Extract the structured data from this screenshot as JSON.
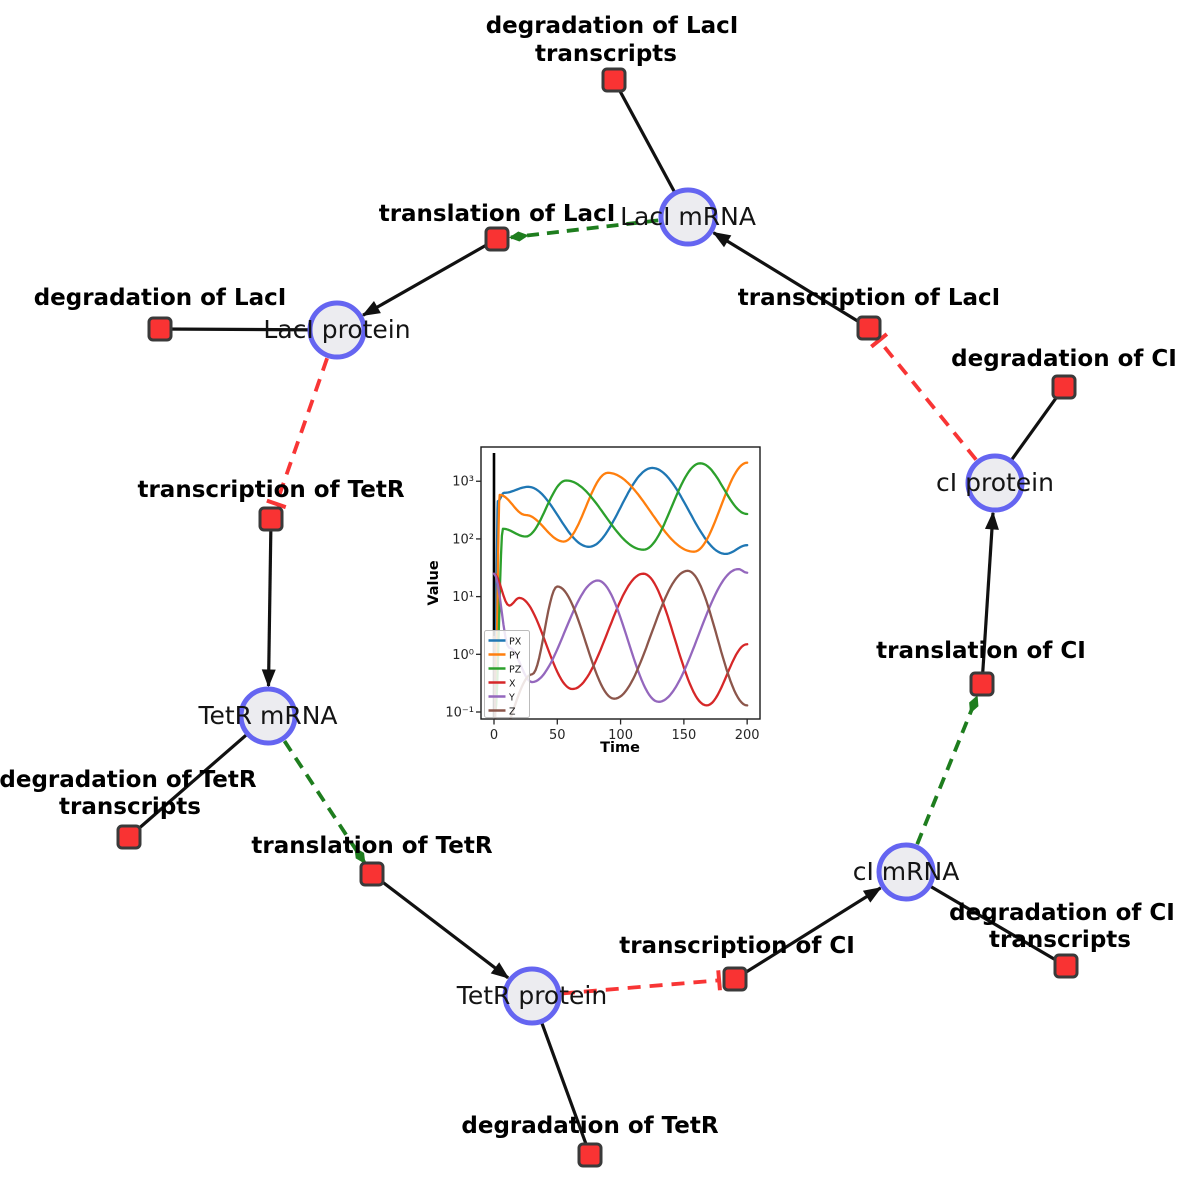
{
  "network": {
    "species": [
      {
        "id": "laci_mrna",
        "label": "LacI mRNA"
      },
      {
        "id": "laci_protein",
        "label": "LacI protein"
      },
      {
        "id": "tetr_mrna",
        "label": "TetR mRNA"
      },
      {
        "id": "tetr_protein",
        "label": "TetR protein"
      },
      {
        "id": "ci_mrna",
        "label": "cI mRNA"
      },
      {
        "id": "ci_protein",
        "label": "cI protein"
      }
    ],
    "reactions": [
      {
        "id": "deg_laci_tx",
        "label": "degradation of LacI",
        "label2": "transcripts"
      },
      {
        "id": "translation_laci",
        "label": "translation of LacI"
      },
      {
        "id": "deg_laci",
        "label": "degradation of LacI"
      },
      {
        "id": "transcription_laci",
        "label": "transcription of LacI"
      },
      {
        "id": "deg_ci",
        "label": "degradation of CI"
      },
      {
        "id": "transcription_tetr",
        "label": "transcription of TetR"
      },
      {
        "id": "deg_tetr_tx",
        "label": "degradation of TetR",
        "label2": "transcripts"
      },
      {
        "id": "translation_tetr",
        "label": "translation of TetR"
      },
      {
        "id": "deg_tetr",
        "label": "degradation of TetR"
      },
      {
        "id": "transcription_ci",
        "label": "transcription of CI"
      },
      {
        "id": "deg_ci_tx",
        "label": "degradation of CI",
        "label2": "transcripts"
      },
      {
        "id": "translation_ci",
        "label": "translation of CI"
      }
    ],
    "edges": [
      {
        "from": "laci_mrna",
        "to": "deg_laci_tx",
        "type": "consumption"
      },
      {
        "from": "tetr_mrna",
        "to": "deg_tetr_tx",
        "type": "consumption"
      },
      {
        "from": "ci_mrna",
        "to": "deg_ci_tx",
        "type": "consumption"
      },
      {
        "from": "laci_protein",
        "to": "deg_laci",
        "type": "consumption"
      },
      {
        "from": "tetr_protein",
        "to": "deg_tetr",
        "type": "consumption"
      },
      {
        "from": "ci_protein",
        "to": "deg_ci",
        "type": "consumption"
      },
      {
        "from": "transcription_laci",
        "to": "laci_mrna",
        "type": "production"
      },
      {
        "from": "translation_laci",
        "to": "laci_protein",
        "type": "production"
      },
      {
        "from": "transcription_tetr",
        "to": "tetr_mrna",
        "type": "production"
      },
      {
        "from": "translation_tetr",
        "to": "tetr_protein",
        "type": "production"
      },
      {
        "from": "transcription_ci",
        "to": "ci_mrna",
        "type": "production"
      },
      {
        "from": "translation_ci",
        "to": "ci_protein",
        "type": "production"
      },
      {
        "from": "laci_mrna",
        "to": "translation_laci",
        "type": "modifier"
      },
      {
        "from": "tetr_mrna",
        "to": "translation_tetr",
        "type": "modifier"
      },
      {
        "from": "ci_mrna",
        "to": "translation_ci",
        "type": "modifier"
      },
      {
        "from": "laci_protein",
        "to": "transcription_tetr",
        "type": "inhibition"
      },
      {
        "from": "tetr_protein",
        "to": "transcription_ci",
        "type": "inhibition"
      },
      {
        "from": "ci_protein",
        "to": "transcription_laci",
        "type": "inhibition"
      }
    ],
    "colors": {
      "species_fill": "#ececf0",
      "species_stroke": "#6565f1",
      "reaction_fill": "#f93333",
      "reaction_stroke": "#3a3a3a",
      "consumption_production_edge": "#111111",
      "modifier_edge": "#1e7d1e",
      "inhibition_edge": "#f83535"
    }
  },
  "chart_data": {
    "type": "line",
    "xlabel": "Time",
    "ylabel": "Value",
    "yscale": "log",
    "xlim": [
      -10,
      210
    ],
    "ylim": [
      0.07,
      4000
    ],
    "grid": false,
    "legend_position": "lower left",
    "xticks": [
      0,
      50,
      100,
      150,
      200
    ],
    "xtick_labels": [
      "0",
      "50",
      "100",
      "150",
      "200"
    ],
    "ytick_values": [
      1000,
      100,
      10,
      1,
      0.1
    ],
    "ytick_labels": [
      "10³",
      "10²",
      "10¹",
      "10⁰",
      "10⁻¹"
    ],
    "initial_transient_line_x": 0,
    "series": [
      {
        "name": "PX",
        "color": "#1f77b4",
        "points": [
          [
            1,
            0.1
          ],
          [
            3,
            450
          ],
          [
            8,
            630
          ],
          [
            27,
            800
          ],
          [
            75,
            73
          ],
          [
            125,
            1700
          ],
          [
            183,
            55
          ],
          [
            200,
            78
          ]
        ]
      },
      {
        "name": "PY",
        "color": "#ff7f0e",
        "points": [
          [
            1,
            0.1
          ],
          [
            4.5,
            580
          ],
          [
            25,
            260
          ],
          [
            55,
            90
          ],
          [
            90,
            1400
          ],
          [
            158,
            60
          ],
          [
            200,
            2100
          ]
        ]
      },
      {
        "name": "PZ",
        "color": "#2ca02c",
        "points": [
          [
            1,
            0.1
          ],
          [
            7,
            150
          ],
          [
            25,
            110
          ],
          [
            57,
            1030
          ],
          [
            118,
            65
          ],
          [
            163,
            2050
          ],
          [
            200,
            270
          ]
        ]
      },
      {
        "name": "X",
        "color": "#d62728",
        "points": [
          [
            0,
            25
          ],
          [
            12,
            7
          ],
          [
            20,
            9.5
          ],
          [
            62,
            0.25
          ],
          [
            118,
            25
          ],
          [
            168,
            0.13
          ],
          [
            200,
            1.5
          ]
        ]
      },
      {
        "name": "Y",
        "color": "#9467bd",
        "points": [
          [
            0,
            25
          ],
          [
            12,
            1.3
          ],
          [
            30,
            0.33
          ],
          [
            82,
            19
          ],
          [
            130,
            0.15
          ],
          [
            193,
            30
          ],
          [
            200,
            26
          ]
        ]
      },
      {
        "name": "Z",
        "color": "#8c564b",
        "points": [
          [
            0,
            2
          ],
          [
            1.5,
            0.03
          ],
          [
            30,
            0.45
          ],
          [
            50,
            15
          ],
          [
            95,
            0.17
          ],
          [
            153,
            28
          ],
          [
            200,
            0.13
          ]
        ]
      }
    ]
  }
}
